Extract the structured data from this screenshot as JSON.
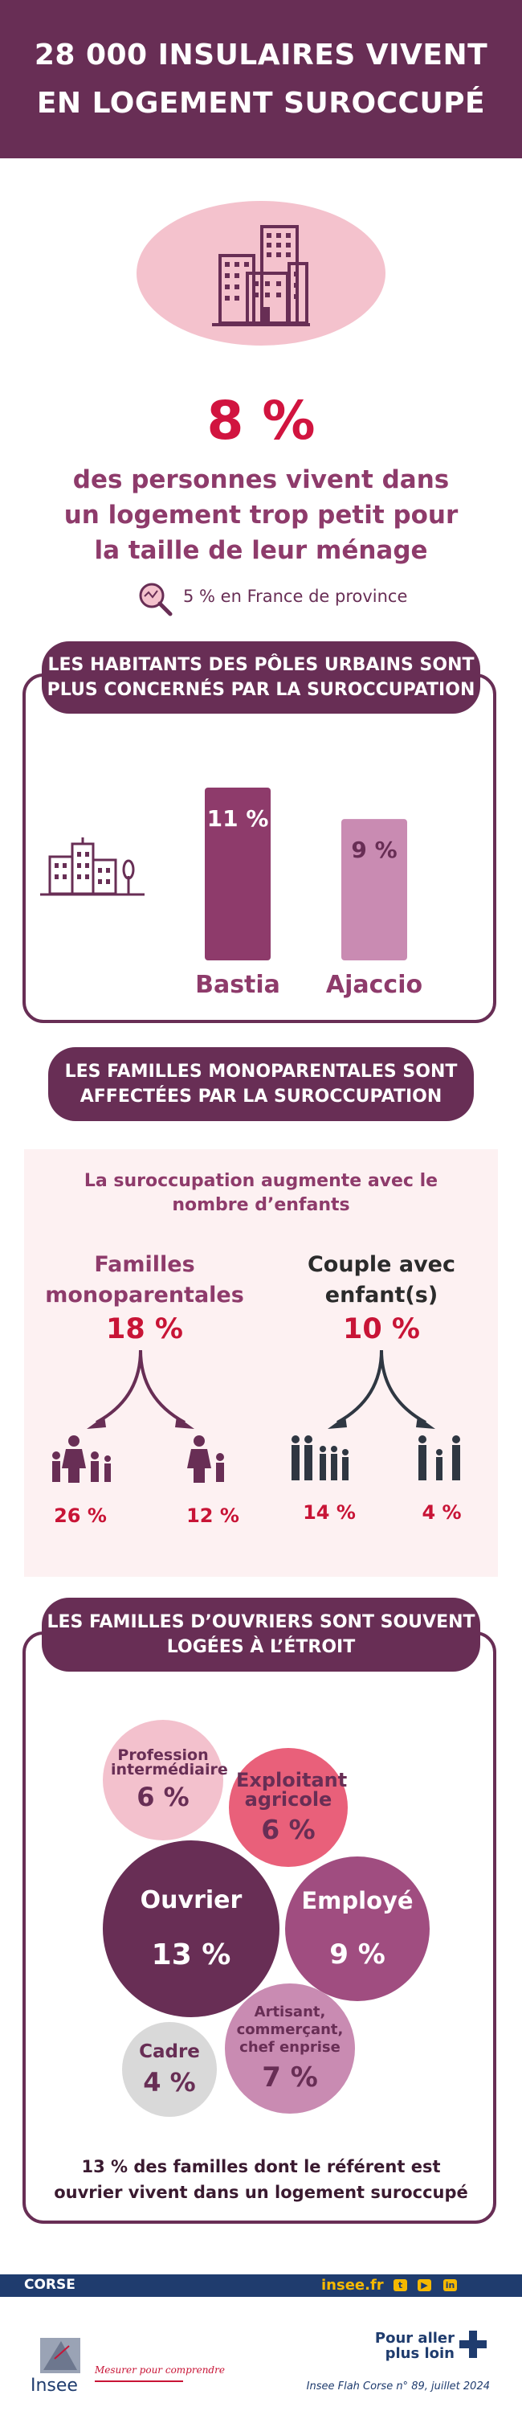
{
  "header": {
    "line1": "28 000 INSULAIRES VIVENT",
    "line2": "EN LOGEMENT SUROCCUPÉ"
  },
  "hero": {
    "value": "8 %",
    "text": "des personnes vivent  dans un logement trop petit pour la taille de leur ménage",
    "comparison": "5 % en France de province",
    "icon": "buildings-icon"
  },
  "section1": {
    "title_line1": "LES HABITANTS DES PÔLES URBAINS SONT",
    "title_line2": "PLUS CONCERNÉS PAR LA SUROCCUPATION",
    "icon": "city-icon"
  },
  "section2": {
    "title_line1": "LES FAMILLES MONOPARENTALES SONT",
    "title_line2": "AFFECTÉES PAR LA SUROCCUPATION",
    "subtitle": "La suroccupation augmente avec le nombre d’enfants",
    "groups": [
      {
        "title": "Familles monoparentales",
        "value": "18 %",
        "sub": [
          "26 %",
          "12 %"
        ]
      },
      {
        "title": "Couple avec enfant(s)",
        "value": "10 %",
        "sub": [
          "14 %",
          "4 %"
        ]
      }
    ]
  },
  "section3": {
    "title_line1": "LES FAMILLES D’OUVRIERS SONT SOUVENT",
    "title_line2": "LOGÉES À L’ÉTROIT",
    "bubbles": [
      {
        "label": "Profession intermédiaire",
        "value": "6 %",
        "color": "#f3c1cd"
      },
      {
        "label": "Exploitant agricole",
        "value": "6 %",
        "color": "#e9607a"
      },
      {
        "label": "Ouvrier",
        "value": "13 %",
        "color": "#682e55"
      },
      {
        "label": "Employé",
        "value": "9 %",
        "color": "#a04d80"
      },
      {
        "label": "Artisant, commerçant, chef enprise",
        "value": "7 %",
        "color": "#c98bb2"
      },
      {
        "label": "Cadre",
        "value": "4 %",
        "color": "#d9d9d9"
      }
    ],
    "footnote": "13 % des familles dont le référent est ouvrier vivent dans un logement suroccupé"
  },
  "chart_data": {
    "type": "bar",
    "categories": [
      "Bastia",
      "Ajaccio"
    ],
    "values": [
      11,
      9
    ],
    "value_labels": [
      "11 %",
      "9 %"
    ],
    "colors": [
      "#8e3b6b",
      "#c98bb2"
    ],
    "title": "",
    "xlabel": "",
    "ylabel": "",
    "ylim": [
      0,
      11
    ]
  },
  "footer": {
    "region": "CORSE",
    "site": "insee.fr",
    "social_icons": [
      "twitter-icon",
      "youtube-icon",
      "linkedin-icon"
    ],
    "logo_text": "Insee",
    "tagline": "Mesurer pour comprendre",
    "more": "Pour aller plus loin",
    "publication": "Insee Flah Corse n° 89, juillet 2024"
  },
  "colors": {
    "primary": "#682e55",
    "accent_red": "#c81436",
    "navy": "#1f3c6e",
    "gold": "#f5b800"
  }
}
